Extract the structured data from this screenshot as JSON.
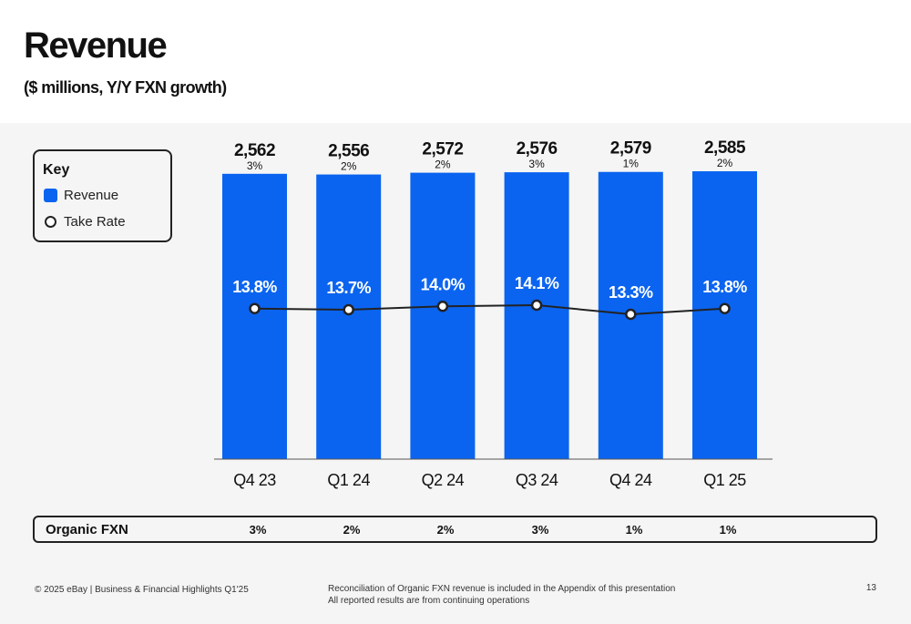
{
  "header": {
    "title": "Revenue",
    "subtitle": "($ millions, Y/Y FXN growth)"
  },
  "key": {
    "title": "Key",
    "revenue_label": "Revenue",
    "take_rate_label": "Take Rate"
  },
  "colors": {
    "bar": "#0a64f0",
    "line": "#222222",
    "accent_text": "#ffffff"
  },
  "chart_data": {
    "type": "bar",
    "categories": [
      "Q4 23",
      "Q1 24",
      "Q2 24",
      "Q3 24",
      "Q4 24",
      "Q1 25"
    ],
    "series": [
      {
        "name": "Revenue",
        "values": [
          2562,
          2556,
          2572,
          2576,
          2579,
          2585
        ],
        "labels": [
          "2,562",
          "2,556",
          "2,572",
          "2,576",
          "2,579",
          "2,585"
        ],
        "growth_labels": [
          "3%",
          "2%",
          "2%",
          "3%",
          "1%",
          "2%"
        ]
      },
      {
        "name": "Take Rate",
        "type": "line",
        "values": [
          13.8,
          13.7,
          14.0,
          14.1,
          13.3,
          13.8
        ],
        "labels": [
          "13.8%",
          "13.7%",
          "14.0%",
          "14.1%",
          "13.3%",
          "13.8%"
        ]
      }
    ],
    "title": "Revenue",
    "ylabel": "",
    "xlabel": "",
    "legend": "left"
  },
  "organic_fxn": {
    "label": "Organic FXN",
    "values": [
      "3%",
      "2%",
      "2%",
      "3%",
      "1%",
      "1%"
    ]
  },
  "footer": {
    "left": "© 2025 eBay | Business & Financial Highlights Q1'25",
    "mid_line1": "Reconciliation of Organic FXN revenue is included in the Appendix of this presentation",
    "mid_line2": "All reported results are from continuing operations",
    "page": "13"
  }
}
